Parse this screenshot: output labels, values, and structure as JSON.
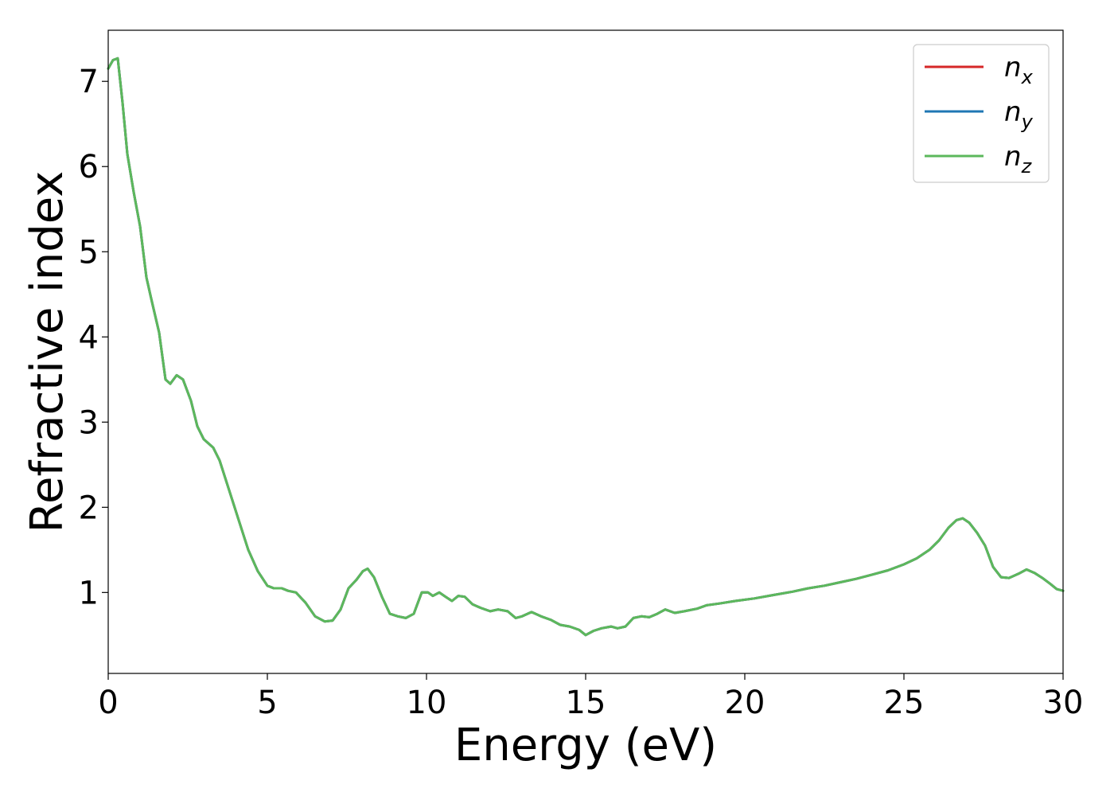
{
  "chart_data": {
    "type": "line",
    "title": "",
    "xlabel": "Energy (eV)",
    "ylabel": "Refractive index",
    "xlim": [
      0,
      30
    ],
    "ylim": [
      0.05,
      7.6
    ],
    "xticks": [
      0,
      5,
      10,
      15,
      20,
      25,
      30
    ],
    "xtick_labels": [
      "0",
      "5",
      "10",
      "15",
      "20",
      "25",
      "30"
    ],
    "yticks": [
      1,
      2,
      3,
      4,
      5,
      6,
      7
    ],
    "ytick_labels": [
      "1",
      "2",
      "3",
      "4",
      "5",
      "6",
      "7"
    ],
    "grid": false,
    "legend_position": "top-right",
    "x": [
      0.0,
      0.15,
      0.3,
      0.45,
      0.6,
      0.8,
      1.0,
      1.2,
      1.35,
      1.6,
      1.8,
      1.95,
      2.15,
      2.35,
      2.6,
      2.8,
      3.0,
      3.3,
      3.5,
      3.8,
      4.1,
      4.4,
      4.7,
      5.0,
      5.2,
      5.45,
      5.65,
      5.9,
      6.2,
      6.5,
      6.8,
      7.05,
      7.3,
      7.55,
      7.8,
      8.0,
      8.15,
      8.35,
      8.6,
      8.85,
      9.1,
      9.35,
      9.6,
      9.85,
      10.05,
      10.2,
      10.4,
      10.6,
      10.8,
      11.0,
      11.2,
      11.45,
      11.7,
      12.0,
      12.25,
      12.55,
      12.8,
      13.0,
      13.3,
      13.6,
      13.9,
      14.2,
      14.5,
      14.8,
      15.0,
      15.25,
      15.5,
      15.8,
      16.0,
      16.25,
      16.5,
      16.75,
      17.0,
      17.25,
      17.5,
      17.8,
      18.1,
      18.5,
      18.8,
      19.2,
      19.7,
      20.3,
      20.9,
      21.5,
      22.0,
      22.5,
      23.0,
      23.5,
      24.0,
      24.5,
      25.0,
      25.4,
      25.8,
      26.1,
      26.4,
      26.65,
      26.85,
      27.05,
      27.3,
      27.55,
      27.8,
      28.05,
      28.3,
      28.6,
      28.85,
      29.1,
      29.35,
      29.6,
      29.8,
      30.0
    ],
    "series": [
      {
        "name": "n_x",
        "color": "#d62728",
        "values": [
          7.15,
          7.25,
          7.27,
          6.75,
          6.15,
          5.7,
          5.3,
          4.7,
          4.45,
          4.05,
          3.5,
          3.45,
          3.55,
          3.5,
          3.25,
          2.95,
          2.8,
          2.7,
          2.55,
          2.2,
          1.85,
          1.5,
          1.25,
          1.08,
          1.05,
          1.05,
          1.02,
          1.0,
          0.88,
          0.72,
          0.66,
          0.67,
          0.8,
          1.05,
          1.15,
          1.25,
          1.28,
          1.18,
          0.95,
          0.75,
          0.72,
          0.7,
          0.75,
          1.0,
          1.0,
          0.96,
          1.0,
          0.95,
          0.9,
          0.96,
          0.95,
          0.86,
          0.82,
          0.78,
          0.8,
          0.78,
          0.7,
          0.72,
          0.77,
          0.72,
          0.68,
          0.62,
          0.6,
          0.56,
          0.5,
          0.55,
          0.58,
          0.6,
          0.58,
          0.6,
          0.7,
          0.72,
          0.71,
          0.75,
          0.8,
          0.76,
          0.78,
          0.81,
          0.85,
          0.87,
          0.9,
          0.93,
          0.97,
          1.01,
          1.05,
          1.08,
          1.12,
          1.16,
          1.21,
          1.26,
          1.33,
          1.4,
          1.5,
          1.61,
          1.76,
          1.85,
          1.87,
          1.82,
          1.7,
          1.55,
          1.3,
          1.18,
          1.17,
          1.22,
          1.27,
          1.23,
          1.17,
          1.1,
          1.04,
          1.02
        ]
      },
      {
        "name": "n_y",
        "color": "#1f77b4",
        "values": [
          7.15,
          7.25,
          7.27,
          6.75,
          6.15,
          5.7,
          5.3,
          4.7,
          4.45,
          4.05,
          3.5,
          3.45,
          3.55,
          3.5,
          3.25,
          2.95,
          2.8,
          2.7,
          2.55,
          2.2,
          1.85,
          1.5,
          1.25,
          1.08,
          1.05,
          1.05,
          1.02,
          1.0,
          0.88,
          0.72,
          0.66,
          0.67,
          0.8,
          1.05,
          1.15,
          1.25,
          1.28,
          1.18,
          0.95,
          0.75,
          0.72,
          0.7,
          0.75,
          1.0,
          1.0,
          0.96,
          1.0,
          0.95,
          0.9,
          0.96,
          0.95,
          0.86,
          0.82,
          0.78,
          0.8,
          0.78,
          0.7,
          0.72,
          0.77,
          0.72,
          0.68,
          0.62,
          0.6,
          0.56,
          0.5,
          0.55,
          0.58,
          0.6,
          0.58,
          0.6,
          0.7,
          0.72,
          0.71,
          0.75,
          0.8,
          0.76,
          0.78,
          0.81,
          0.85,
          0.87,
          0.9,
          0.93,
          0.97,
          1.01,
          1.05,
          1.08,
          1.12,
          1.16,
          1.21,
          1.26,
          1.33,
          1.4,
          1.5,
          1.61,
          1.76,
          1.85,
          1.87,
          1.82,
          1.7,
          1.55,
          1.3,
          1.18,
          1.17,
          1.22,
          1.27,
          1.23,
          1.17,
          1.1,
          1.04,
          1.02
        ]
      },
      {
        "name": "n_z",
        "color": "#5cb85c",
        "values": [
          7.15,
          7.25,
          7.27,
          6.75,
          6.15,
          5.7,
          5.3,
          4.7,
          4.45,
          4.05,
          3.5,
          3.45,
          3.55,
          3.5,
          3.25,
          2.95,
          2.8,
          2.7,
          2.55,
          2.2,
          1.85,
          1.5,
          1.25,
          1.08,
          1.05,
          1.05,
          1.02,
          1.0,
          0.88,
          0.72,
          0.66,
          0.67,
          0.8,
          1.05,
          1.15,
          1.25,
          1.28,
          1.18,
          0.95,
          0.75,
          0.72,
          0.7,
          0.75,
          1.0,
          1.0,
          0.96,
          1.0,
          0.95,
          0.9,
          0.96,
          0.95,
          0.86,
          0.82,
          0.78,
          0.8,
          0.78,
          0.7,
          0.72,
          0.77,
          0.72,
          0.68,
          0.62,
          0.6,
          0.56,
          0.5,
          0.55,
          0.58,
          0.6,
          0.58,
          0.6,
          0.7,
          0.72,
          0.71,
          0.75,
          0.8,
          0.76,
          0.78,
          0.81,
          0.85,
          0.87,
          0.9,
          0.93,
          0.97,
          1.01,
          1.05,
          1.08,
          1.12,
          1.16,
          1.21,
          1.26,
          1.33,
          1.4,
          1.5,
          1.61,
          1.76,
          1.85,
          1.87,
          1.82,
          1.7,
          1.55,
          1.3,
          1.18,
          1.17,
          1.22,
          1.27,
          1.23,
          1.17,
          1.1,
          1.04,
          1.02
        ]
      }
    ],
    "legend": [
      {
        "base": "n",
        "sub": "x",
        "color": "#d62728"
      },
      {
        "base": "n",
        "sub": "y",
        "color": "#1f77b4"
      },
      {
        "base": "n",
        "sub": "z",
        "color": "#5cb85c"
      }
    ]
  }
}
